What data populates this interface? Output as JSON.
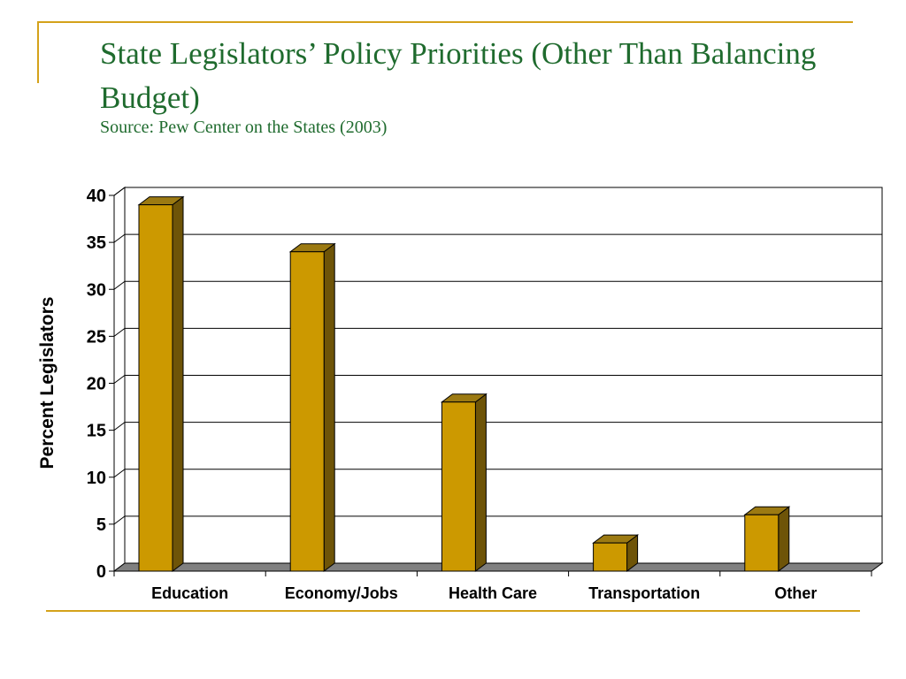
{
  "slide": {
    "title": "State Legislators’ Policy Priorities (Other Than Balancing Budget)",
    "subtitle": "Source: Pew Center on the States (2003)"
  },
  "colors": {
    "accent_rule": "#d4a21a",
    "title_text": "#1f6b2e",
    "bar_front": "#cc9900",
    "bar_top": "#9c7a12",
    "bar_side": "#6e5408",
    "floor": "#808080"
  },
  "chart_data": {
    "type": "bar",
    "style": "3d-column",
    "categories": [
      "Education",
      "Economy/Jobs",
      "Health Care",
      "Transportation",
      "Other"
    ],
    "values": [
      39,
      34,
      18,
      3,
      6
    ],
    "title": "",
    "xlabel": "",
    "ylabel": "Percent Legislators",
    "ylim": [
      0,
      40
    ],
    "yticks": [
      0,
      5,
      10,
      15,
      20,
      25,
      30,
      35,
      40
    ],
    "grid": true,
    "legend": "none"
  }
}
